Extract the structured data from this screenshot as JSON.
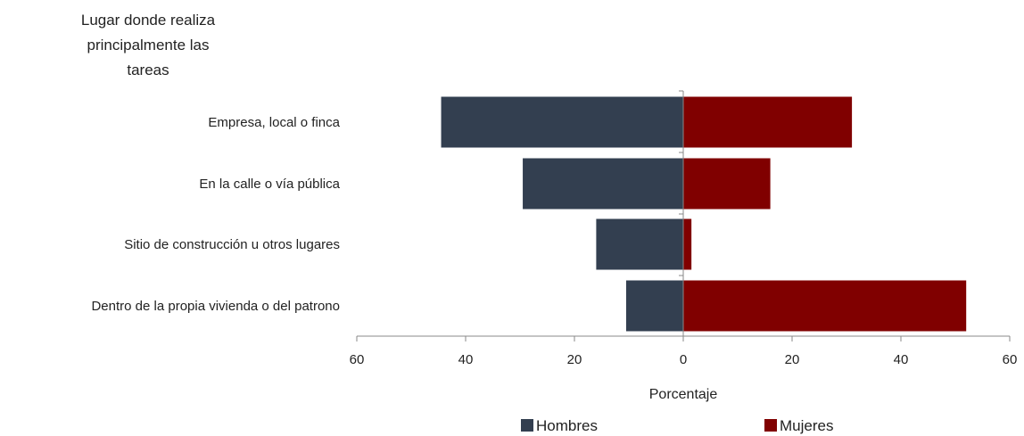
{
  "chart_data": {
    "type": "bar",
    "orientation": "horizontal",
    "title_lines": [
      "Lugar donde realiza",
      "principalmente las",
      "tareas"
    ],
    "categories": [
      "Empresa, local o finca",
      "En la calle o vía pública",
      "Sitio de construcción u otros lugares",
      "Dentro de la propia vivienda o del patrono"
    ],
    "series": [
      {
        "name": "Hombres",
        "color": "#333f50",
        "direction": "left",
        "values": [
          44.5,
          29.5,
          16,
          10.5
        ]
      },
      {
        "name": "Mujeres",
        "color": "#800000",
        "direction": "right",
        "values": [
          31,
          16,
          1.5,
          52
        ]
      }
    ],
    "xlabel": "Porcentaje",
    "xlim": [
      -60,
      60
    ],
    "ticks": [
      -60,
      -40,
      -20,
      0,
      20,
      40,
      60
    ],
    "tick_labels": [
      "60",
      "40",
      "20",
      "0",
      "20",
      "40",
      "60"
    ],
    "grid": false,
    "legend_position": "bottom"
  }
}
